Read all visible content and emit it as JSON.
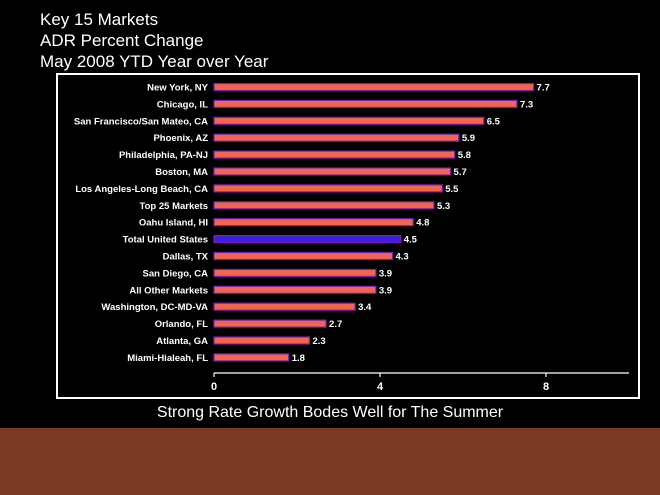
{
  "title": {
    "line1": "Key 15 Markets",
    "line2": "ADR Percent Change",
    "line3": "May 2008 YTD Year over Year"
  },
  "caption": "Strong Rate Growth Bodes Well for The Summer",
  "colors": {
    "background": "#000000",
    "bar": "#f0664f",
    "highlight_bar": "#3b1fe0",
    "bar_outline": "#7a1fb0",
    "text": "#ffffff",
    "footer": "#7a3a22"
  },
  "chart_data": {
    "type": "bar",
    "orientation": "horizontal",
    "title": "",
    "xlabel": "",
    "ylabel": "",
    "xlim": [
      0,
      10
    ],
    "xticks": [
      0,
      4,
      8
    ],
    "grid": false,
    "categories": [
      "New York, NY",
      "Chicago, IL",
      "San Francisco/San Mateo, CA",
      "Phoenix, AZ",
      "Philadelphia, PA-NJ",
      "Boston, MA",
      "Los Angeles-Long Beach, CA",
      "Top 25 Markets",
      "Oahu Island, HI",
      "Total United States",
      "Dallas, TX",
      "San Diego, CA",
      "All Other Markets",
      "Washington, DC-MD-VA",
      "Orlando, FL",
      "Atlanta, GA",
      "Miami-Hialeah, FL"
    ],
    "values": [
      7.7,
      7.3,
      6.5,
      5.9,
      5.8,
      5.7,
      5.5,
      5.3,
      4.8,
      4.5,
      4.3,
      3.9,
      3.9,
      3.4,
      2.7,
      2.3,
      1.8
    ],
    "highlight_category": "Total United States"
  }
}
